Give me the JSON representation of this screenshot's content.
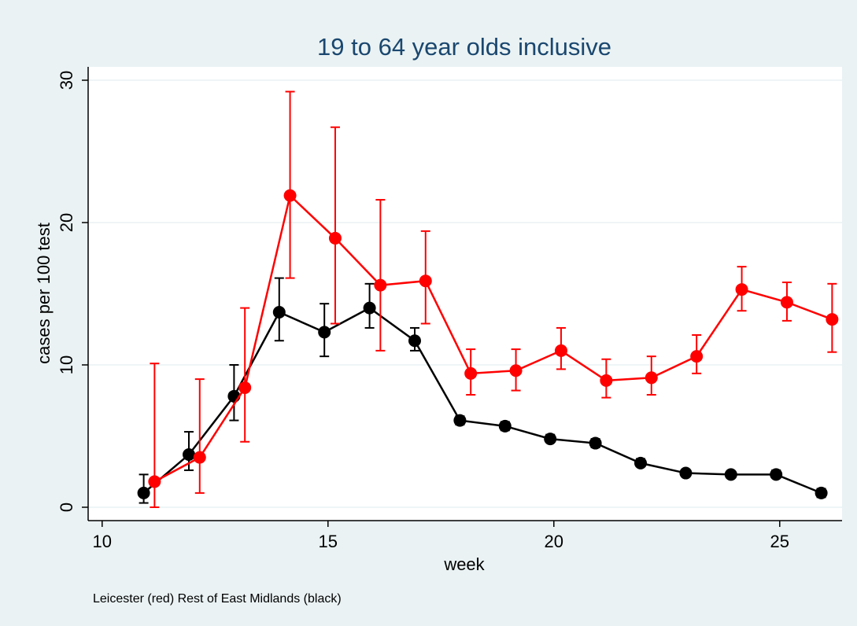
{
  "chart_data": {
    "type": "line",
    "title": "19 to 64 year olds inclusive",
    "x_label": "week",
    "y_label": "cases per 100 test",
    "note": "Leicester (red) Rest of East Midlands (black)",
    "xlim": [
      9.69,
      26.38
    ],
    "ylim": [
      -0.94,
      30.94
    ],
    "xticks": [
      10,
      15,
      20,
      25
    ],
    "yticks": [
      0,
      10,
      20,
      30
    ],
    "grid": true,
    "series": [
      {
        "color": "#000000",
        "x": [
          10.92,
          11.92,
          12.92,
          13.92,
          14.92,
          15.92,
          16.92,
          17.92,
          18.92,
          19.92,
          20.92,
          21.92,
          22.92,
          23.92,
          24.92,
          25.92
        ],
        "values": [
          1.0,
          3.7,
          7.8,
          13.7,
          12.3,
          14.0,
          11.7,
          6.1,
          5.7,
          4.8,
          4.5,
          3.1,
          2.4,
          2.3,
          2.3,
          1.0
        ],
        "low": [
          0.3,
          2.6,
          6.1,
          11.7,
          10.6,
          12.6,
          11.0,
          5.8,
          5.4,
          4.6,
          4.2,
          2.9,
          2.2,
          2.1,
          2.1,
          0.7
        ],
        "high": [
          2.3,
          5.3,
          10.0,
          16.1,
          14.3,
          15.7,
          12.6,
          6.4,
          6.0,
          5.1,
          4.8,
          3.4,
          2.6,
          2.5,
          2.6,
          1.3
        ]
      },
      {
        "color": "#ff0000",
        "x": [
          11.16,
          12.16,
          13.16,
          14.16,
          15.16,
          16.16,
          17.16,
          18.16,
          19.16,
          20.16,
          21.16,
          22.16,
          23.16,
          24.16,
          25.16,
          26.16
        ],
        "values": [
          1.8,
          3.5,
          8.4,
          21.9,
          18.9,
          15.6,
          15.9,
          9.4,
          9.6,
          11.0,
          8.9,
          9.1,
          10.6,
          15.3,
          14.4,
          13.2
        ],
        "low": [
          0.0,
          1.0,
          4.6,
          16.1,
          12.9,
          11.0,
          12.9,
          7.9,
          8.2,
          9.7,
          7.7,
          7.9,
          9.4,
          13.8,
          13.1,
          10.9
        ],
        "high": [
          10.1,
          9.0,
          14.0,
          29.2,
          26.7,
          21.6,
          19.4,
          11.1,
          11.1,
          12.6,
          10.4,
          10.6,
          12.1,
          16.9,
          15.8,
          15.7
        ]
      }
    ]
  }
}
